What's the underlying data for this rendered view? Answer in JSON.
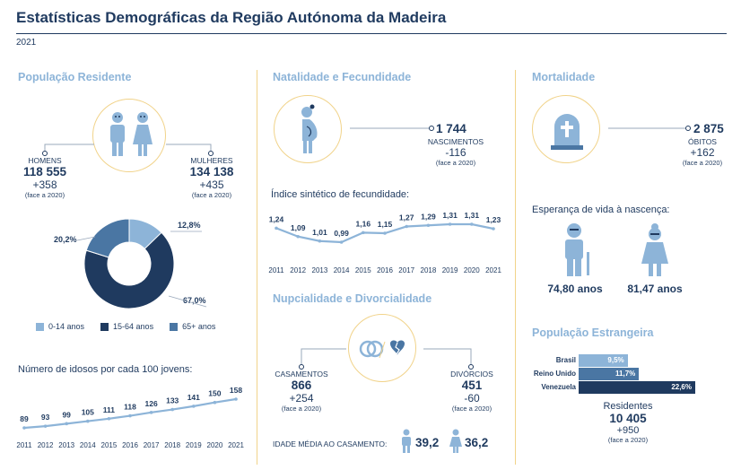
{
  "header": {
    "title": "Estatísticas Demográficas da Região Autónoma da Madeira",
    "year": "2021"
  },
  "populacao": {
    "section": "População Residente",
    "homens": {
      "label": "HOMENS",
      "value": "118 555",
      "delta": "+358",
      "note": "(face a 2020)"
    },
    "mulheres": {
      "label": "MULHERES",
      "value": "134 138",
      "delta": "+435",
      "note": "(face a 2020)"
    },
    "donut": {
      "slices": [
        {
          "name": "0-14 anos",
          "value": 12.8,
          "label": "12,8%",
          "color": "#8db4d8"
        },
        {
          "name": "15-64 anos",
          "value": 67.0,
          "label": "67,0%",
          "color": "#1f3a5f"
        },
        {
          "name": "65+ anos",
          "value": 20.2,
          "label": "20,2%",
          "color": "#4a76a3"
        }
      ]
    },
    "idosos": {
      "title": "Número de idosos por cada 100 jovens:",
      "years": [
        "2011",
        "2012",
        "2013",
        "2014",
        "2015",
        "2016",
        "2017",
        "2018",
        "2019",
        "2020",
        "2021"
      ],
      "values": [
        89,
        93,
        99,
        105,
        111,
        118,
        126,
        133,
        141,
        150,
        158
      ],
      "labels": [
        "89",
        "93",
        "99",
        "105",
        "111",
        "118",
        "126",
        "133",
        "141",
        "150",
        "158"
      ]
    }
  },
  "natalidade": {
    "section": "Natalidade e Fecundidade",
    "value": "1 744",
    "label": "NASCIMENTOS",
    "delta": "-116",
    "note": "(face a 2020)",
    "isf": {
      "title": "Índice sintético de fecundidade:",
      "years": [
        "2011",
        "2012",
        "2013",
        "2014",
        "2015",
        "2016",
        "2017",
        "2018",
        "2019",
        "2020",
        "2021"
      ],
      "values": [
        1.24,
        1.09,
        1.01,
        0.99,
        1.16,
        1.15,
        1.27,
        1.29,
        1.31,
        1.31,
        1.23
      ],
      "labels": [
        "1,24",
        "1,09",
        "1,01",
        "0,99",
        "1,16",
        "1,15",
        "1,27",
        "1,29",
        "1,31",
        "1,31",
        "1,23"
      ]
    }
  },
  "nupcialidade": {
    "section": "Nupcialidade e Divorcialidade",
    "casamentos": {
      "label": "CASAMENTOS",
      "value": "866",
      "delta": "+254",
      "note": "(face a 2020)"
    },
    "divorcios": {
      "label": "DIVÓRCIOS",
      "value": "451",
      "delta": "-60",
      "note": "(face a 2020)"
    },
    "idade": {
      "label": "IDADE MÉDIA AO CASAMENTO:",
      "homem": "39,2",
      "mulher": "36,2"
    }
  },
  "mortalidade": {
    "section": "Mortalidade",
    "value": "2 875",
    "label": "ÓBITOS",
    "delta": "+162",
    "note": "(face a 2020)",
    "esperanca": {
      "title": "Esperança de vida à nascença:",
      "homem": "74,80 anos",
      "mulher": "81,47 anos"
    }
  },
  "estrangeira": {
    "section": "População Estrangeira",
    "bars": [
      {
        "name": "Brasil",
        "value": 9.5,
        "label": "9,5%",
        "color": "#8db4d8"
      },
      {
        "name": "Reino Unido",
        "value": 11.7,
        "label": "11,7%",
        "color": "#4a76a3"
      },
      {
        "name": "Venezuela",
        "value": 22.6,
        "label": "22,6%",
        "color": "#1f3a5f"
      }
    ],
    "residentes": {
      "label": "Residentes",
      "value": "10 405",
      "delta": "+950",
      "note": "(face a 2020)"
    }
  },
  "colors": {
    "navy": "#1f3a5f",
    "light": "#8db4d8",
    "mid": "#4a76a3",
    "gold": "#f1d38a"
  }
}
